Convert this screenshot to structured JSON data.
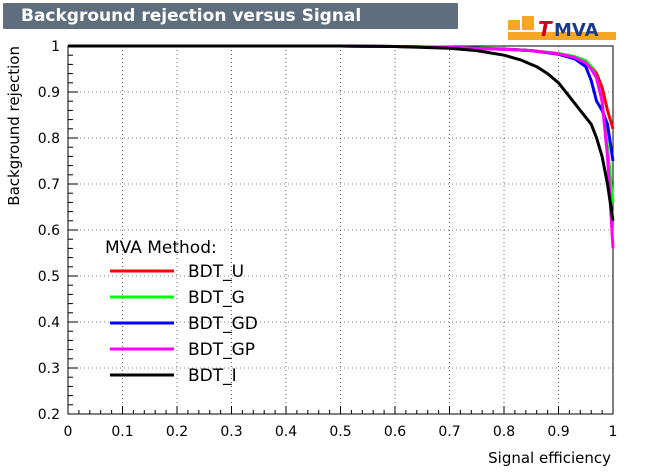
{
  "header": {
    "title": "Background rejection versus Signal efficiency"
  },
  "logo": {
    "text_t": "T",
    "text_mva": "MVA"
  },
  "colors": {
    "title_bg": "#5f6e7e",
    "grid": "#000000",
    "logo_orange": "#f5a623",
    "logo_red": "#d0021b"
  },
  "chart_data": {
    "type": "line",
    "title": "Background rejection versus Signal efficiency",
    "xlabel": "Signal efficiency",
    "ylabel": "Background rejection",
    "xlim": [
      0,
      1
    ],
    "ylim": [
      0.2,
      1
    ],
    "grid": true,
    "x_ticks": [
      "0",
      "0.1",
      "0.2",
      "0.3",
      "0.4",
      "0.5",
      "0.6",
      "0.7",
      "0.8",
      "0.9",
      "1"
    ],
    "y_ticks": [
      "0.2",
      "0.3",
      "0.4",
      "0.5",
      "0.6",
      "0.7",
      "0.8",
      "0.9",
      "1"
    ],
    "legend": {
      "title": "MVA Method:",
      "placement": "bottom-left"
    },
    "series": [
      {
        "name": "BDT_U",
        "color": "#ff0000",
        "x": [
          0,
          0.5,
          0.6,
          0.7,
          0.8,
          0.85,
          0.9,
          0.93,
          0.95,
          0.96,
          0.97,
          0.98,
          0.99,
          1.0
        ],
        "y": [
          1,
          1,
          0.999,
          0.997,
          0.993,
          0.99,
          0.983,
          0.975,
          0.965,
          0.955,
          0.94,
          0.91,
          0.86,
          0.82
        ]
      },
      {
        "name": "BDT_G",
        "color": "#00ff00",
        "x": [
          0,
          0.5,
          0.6,
          0.7,
          0.8,
          0.85,
          0.9,
          0.93,
          0.95,
          0.96,
          0.97,
          0.98,
          0.99,
          1.0
        ],
        "y": [
          1,
          1,
          0.999,
          0.997,
          0.994,
          0.99,
          0.984,
          0.977,
          0.968,
          0.955,
          0.93,
          0.88,
          0.78,
          0.66
        ]
      },
      {
        "name": "BDT_GD",
        "color": "#0000ff",
        "x": [
          0,
          0.5,
          0.6,
          0.7,
          0.8,
          0.85,
          0.9,
          0.93,
          0.95,
          0.96,
          0.97,
          0.98,
          0.99,
          1.0
        ],
        "y": [
          1,
          1,
          0.999,
          0.997,
          0.993,
          0.99,
          0.982,
          0.972,
          0.955,
          0.925,
          0.88,
          0.86,
          0.83,
          0.75
        ]
      },
      {
        "name": "BDT_GP",
        "color": "#ff00ff",
        "x": [
          0,
          0.5,
          0.6,
          0.7,
          0.8,
          0.85,
          0.9,
          0.93,
          0.95,
          0.96,
          0.97,
          0.98,
          0.99,
          1.0
        ],
        "y": [
          1,
          1,
          0.999,
          0.997,
          0.993,
          0.99,
          0.983,
          0.975,
          0.963,
          0.95,
          0.93,
          0.88,
          0.76,
          0.56
        ]
      },
      {
        "name": "BDT_I",
        "color": "#000000",
        "x": [
          0,
          0.5,
          0.6,
          0.7,
          0.75,
          0.8,
          0.83,
          0.86,
          0.88,
          0.9,
          0.92,
          0.94,
          0.96,
          0.97,
          0.98,
          0.99,
          1.0
        ],
        "y": [
          1,
          1,
          0.999,
          0.995,
          0.99,
          0.98,
          0.97,
          0.955,
          0.94,
          0.92,
          0.89,
          0.86,
          0.83,
          0.8,
          0.76,
          0.7,
          0.62
        ]
      }
    ]
  }
}
